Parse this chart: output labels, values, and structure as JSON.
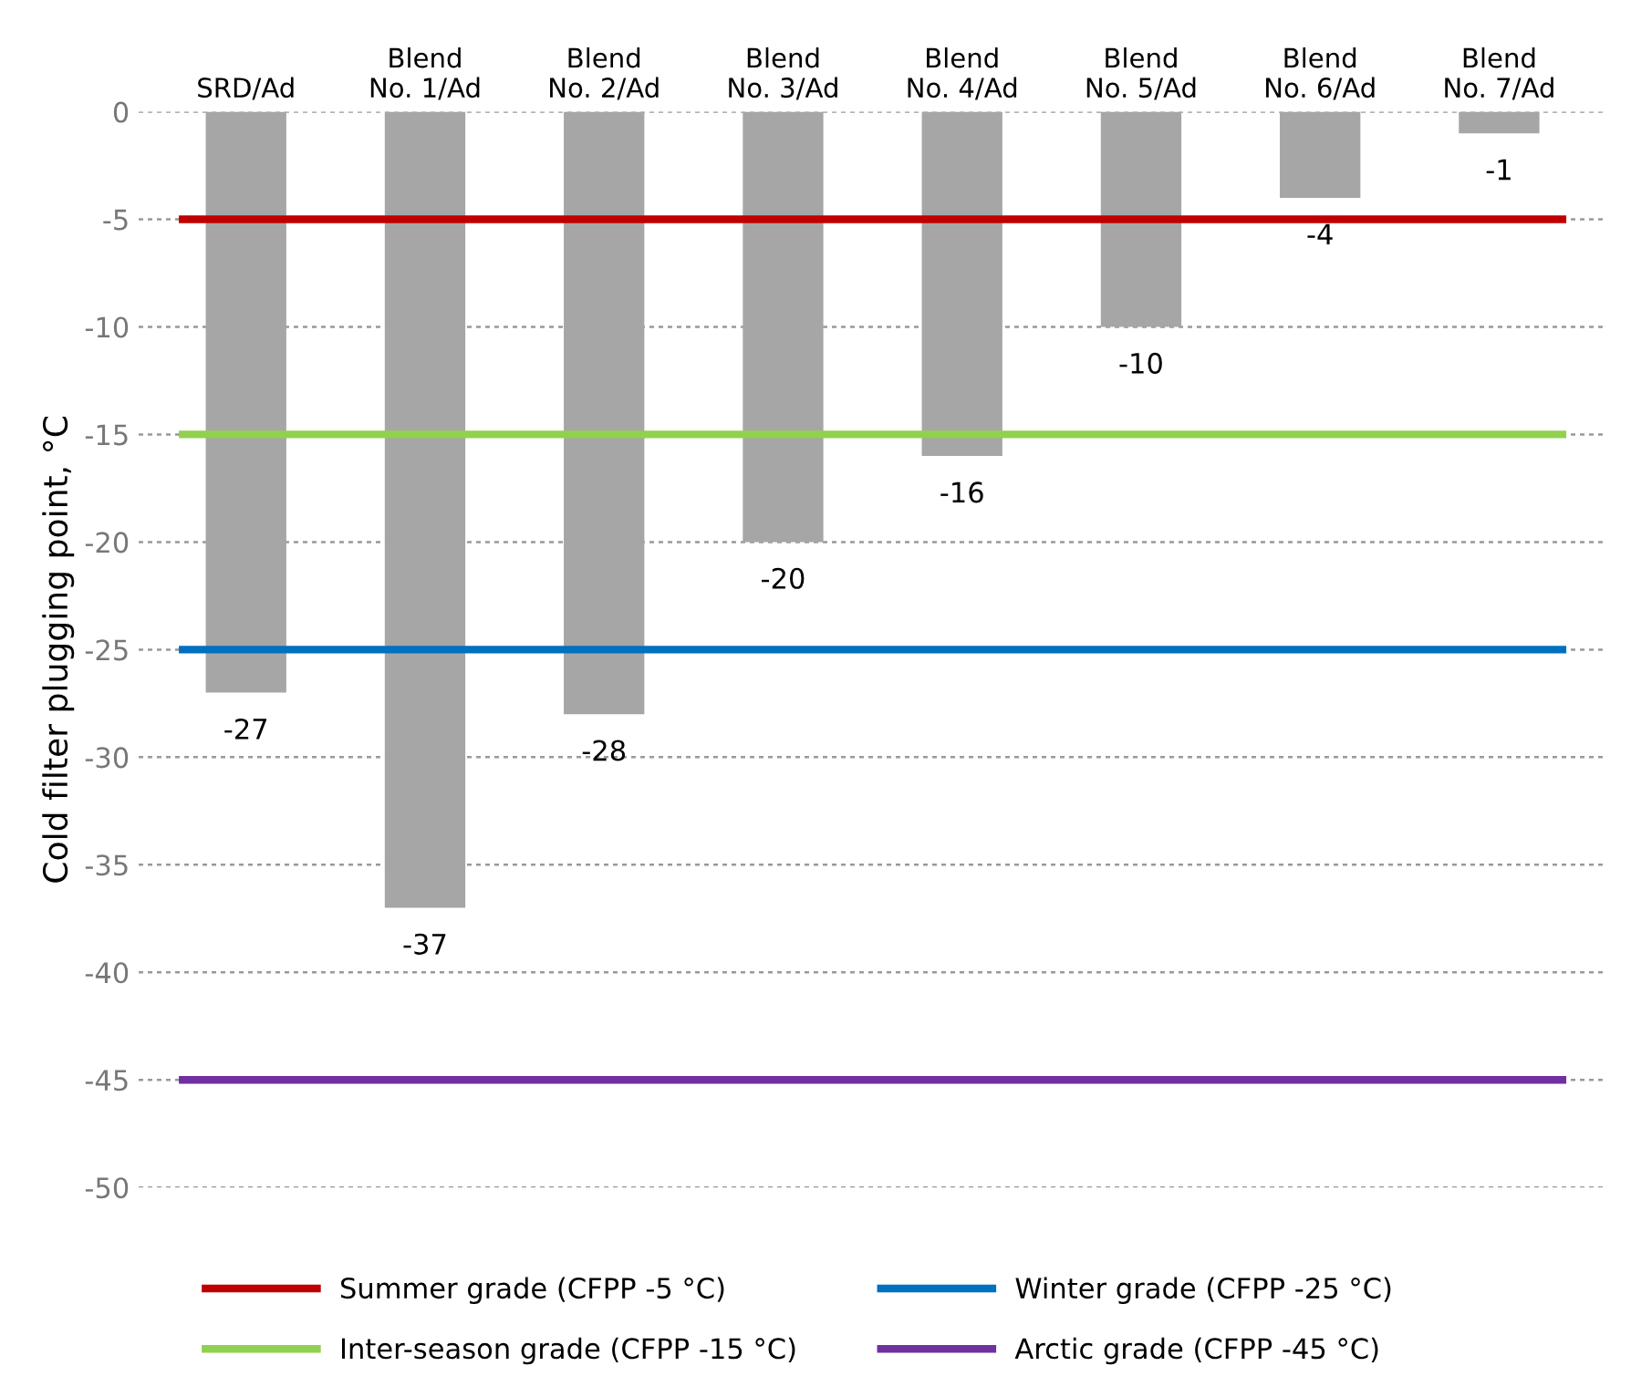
{
  "chart_data": {
    "type": "bar",
    "ylabel": "Cold filter plugging point, °C",
    "categories": [
      "SRD/Ad",
      "Blend\nNo. 1/Ad",
      "Blend\nNo. 2/Ad",
      "Blend\nNo. 3/Ad",
      "Blend\nNo. 4/Ad",
      "Blend\nNo. 5/Ad",
      "Blend\nNo. 6/Ad",
      "Blend\nNo. 7/Ad"
    ],
    "values": [
      -27,
      -37,
      -28,
      -20,
      -16,
      -10,
      -4,
      -1
    ],
    "color": "#a6a6a6",
    "data_labels": true,
    "ylim": [
      -50,
      0
    ],
    "yticks": [
      0,
      -5,
      -10,
      -15,
      -20,
      -25,
      -30,
      -35,
      -40,
      -45,
      -50
    ],
    "grid": "y",
    "legend": "bottom",
    "ref_lines": [
      {
        "axis": "y",
        "value": -5,
        "label": "Summer grade (CFPP -5 °C)",
        "color": "#c00000"
      },
      {
        "axis": "y",
        "value": -15,
        "label": "Inter-season grade (CFPP -15 °C)",
        "color": "#92d050"
      },
      {
        "axis": "y",
        "value": -25,
        "label": "Winter grade (CFPP -25 °C)",
        "color": "#0070c0"
      },
      {
        "axis": "y",
        "value": -45,
        "label": "Arctic grade (CFPP -45 °C)",
        "color": "#7030a0"
      }
    ]
  }
}
